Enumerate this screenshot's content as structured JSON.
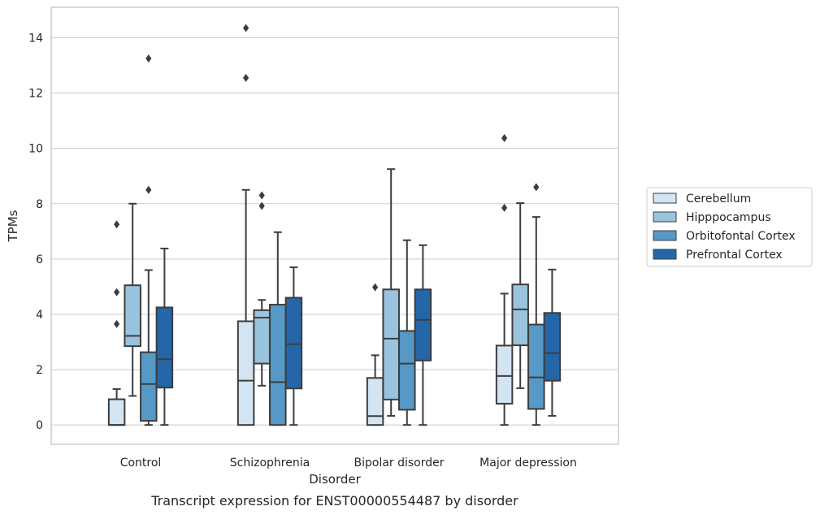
{
  "chart_data": {
    "type": "boxplot",
    "caption": "Transcript expression for ENST00000554487 by disorder",
    "xlabel": "Disorder",
    "ylabel": "TPMs",
    "ylim": [
      -0.7,
      15.1
    ],
    "yticks": [
      0,
      2,
      4,
      6,
      8,
      10,
      12,
      14
    ],
    "grid": "horizontal",
    "legend_position": "right",
    "categories": [
      "Control",
      "Schizophrenia",
      "Bipolar disorder",
      "Major depression"
    ],
    "series": [
      {
        "name": "Cerebellum",
        "color": "#d3e4f2",
        "boxes": [
          {
            "whisker_low": 0,
            "q1": 0,
            "median": 0,
            "q3": 0.93,
            "whisker_high": 1.3,
            "outliers": [
              3.65,
              4.8,
              7.25
            ]
          },
          {
            "whisker_low": 0,
            "q1": 0,
            "median": 1.6,
            "q3": 3.75,
            "whisker_high": 8.5,
            "outliers": [
              12.55,
              14.35
            ]
          },
          {
            "whisker_low": 0,
            "q1": 0,
            "median": 0.32,
            "q3": 1.7,
            "whisker_high": 2.52,
            "outliers": [
              4.98
            ]
          },
          {
            "whisker_low": 0,
            "q1": 0.77,
            "median": 1.77,
            "q3": 2.87,
            "whisker_high": 4.75,
            "outliers": [
              7.85,
              10.37
            ]
          }
        ]
      },
      {
        "name": "Hipppocampus",
        "color": "#9ac3dd",
        "boxes": [
          {
            "whisker_low": 1.05,
            "q1": 2.85,
            "median": 3.22,
            "q3": 5.05,
            "whisker_high": 8.0,
            "outliers": []
          },
          {
            "whisker_low": 1.42,
            "q1": 2.22,
            "median": 3.88,
            "q3": 4.15,
            "whisker_high": 4.52,
            "outliers": [
              7.92,
              8.3
            ]
          },
          {
            "whisker_low": 0.33,
            "q1": 0.92,
            "median": 3.12,
            "q3": 4.9,
            "whisker_high": 9.25,
            "outliers": []
          },
          {
            "whisker_low": 1.33,
            "q1": 2.88,
            "median": 4.18,
            "q3": 5.08,
            "whisker_high": 8.02,
            "outliers": []
          }
        ]
      },
      {
        "name": "Orbitofontal Cortex",
        "color": "#5799c6",
        "boxes": [
          {
            "whisker_low": 0,
            "q1": 0.15,
            "median": 1.48,
            "q3": 2.63,
            "whisker_high": 5.6,
            "outliers": [
              8.5,
              13.25
            ]
          },
          {
            "whisker_low": 0,
            "q1": 0,
            "median": 1.55,
            "q3": 4.35,
            "whisker_high": 6.97,
            "outliers": []
          },
          {
            "whisker_low": 0,
            "q1": 0.55,
            "median": 2.22,
            "q3": 3.4,
            "whisker_high": 6.68,
            "outliers": []
          },
          {
            "whisker_low": 0,
            "q1": 0.58,
            "median": 1.72,
            "q3": 3.63,
            "whisker_high": 7.52,
            "outliers": [
              8.6
            ]
          }
        ]
      },
      {
        "name": "Prefrontal Cortex",
        "color": "#2566a8",
        "boxes": [
          {
            "whisker_low": 0,
            "q1": 1.35,
            "median": 2.38,
            "q3": 4.25,
            "whisker_high": 6.38,
            "outliers": []
          },
          {
            "whisker_low": 0,
            "q1": 1.32,
            "median": 2.92,
            "q3": 4.6,
            "whisker_high": 5.7,
            "outliers": []
          },
          {
            "whisker_low": 0,
            "q1": 2.33,
            "median": 3.8,
            "q3": 4.9,
            "whisker_high": 6.5,
            "outliers": []
          },
          {
            "whisker_low": 0.33,
            "q1": 1.6,
            "median": 2.6,
            "q3": 4.05,
            "whisker_high": 5.62,
            "outliers": []
          }
        ]
      }
    ],
    "colors": {
      "box_edge": "#3d3d3d",
      "grid": "#cccccc",
      "frame": "#cccccc",
      "text": "#262626"
    }
  }
}
